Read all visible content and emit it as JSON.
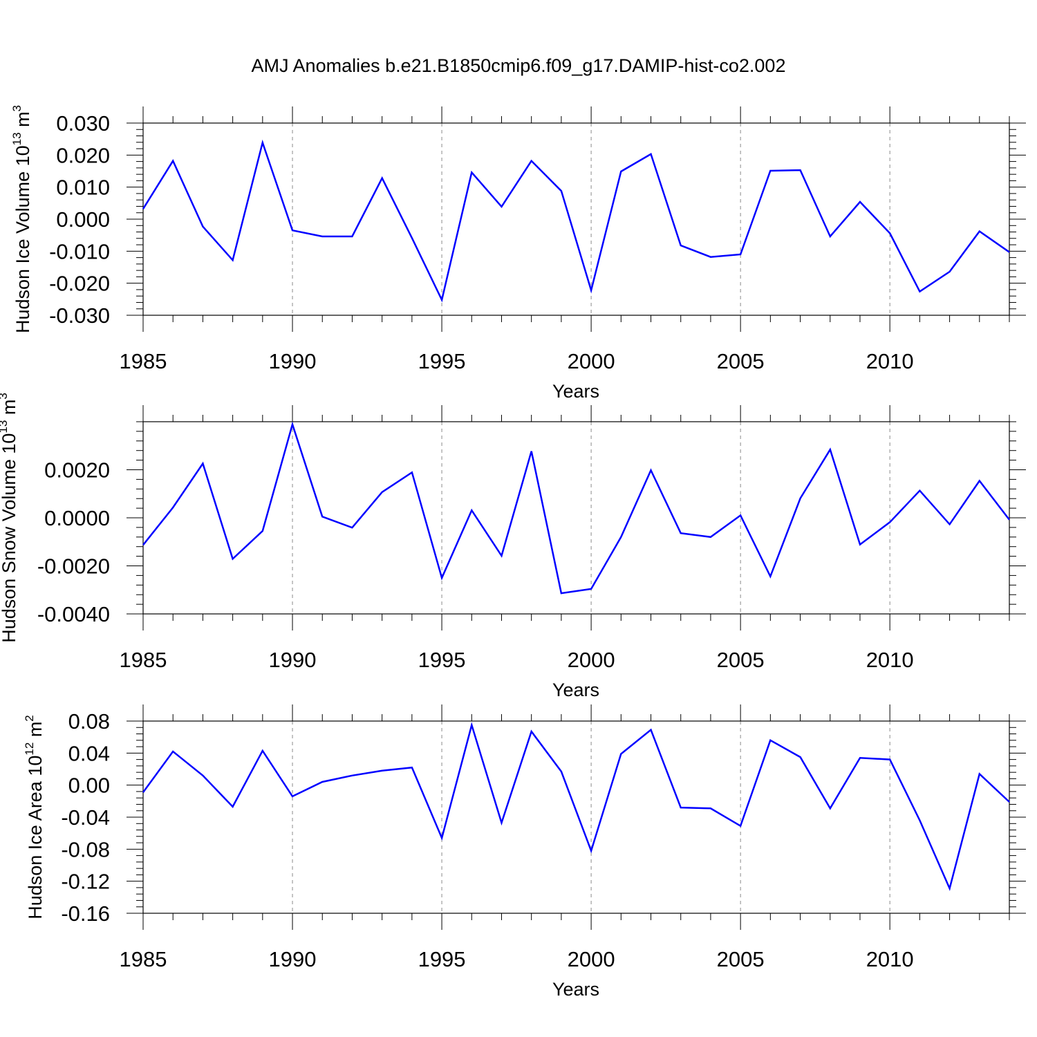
{
  "title": "AMJ Anomalies b.e21.B1850cmip6.f09_g17.DAMIP-hist-co2.002",
  "colors": {
    "series": "#0000ff",
    "grid": "#8a8a8a",
    "axis": "#000000"
  },
  "chart_data": [
    {
      "type": "line",
      "ylabel": "Hudson Ice Volume 10",
      "ylabel_exp": "13",
      "ylabel_unit": " m",
      "ylabel_unit_exp": "3",
      "xlabel": "Years",
      "xlim": [
        1985,
        2014
      ],
      "ylim": [
        -0.03,
        0.03
      ],
      "xticks": [
        1985,
        1990,
        1995,
        2000,
        2005,
        2010
      ],
      "yticks": [
        -0.03,
        -0.02,
        -0.01,
        0.0,
        0.01,
        0.02,
        0.03
      ],
      "ytick_labels": [
        "-0.030",
        "-0.020",
        "-0.010",
        "0.000",
        "0.010",
        "0.020",
        "0.030"
      ],
      "ytop_extra": 0,
      "y_minor_step": 0.002,
      "grid": "vertical dashed at labeled years",
      "x": [
        1985,
        1986,
        1987,
        1988,
        1989,
        1990,
        1991,
        1992,
        1993,
        1994,
        1995,
        1996,
        1997,
        1998,
        1999,
        2000,
        2001,
        2002,
        2003,
        2004,
        2005,
        2006,
        2007,
        2008,
        2009,
        2010,
        2011,
        2012,
        2013,
        2014
      ],
      "values": [
        0.0032,
        0.0182,
        -0.0023,
        -0.0128,
        0.0239,
        -0.0035,
        -0.0054,
        -0.0054,
        0.0128,
        -0.0059,
        -0.0252,
        0.0146,
        0.0039,
        0.0182,
        0.0088,
        -0.0222,
        0.0149,
        0.0203,
        -0.0082,
        -0.0118,
        -0.011,
        0.0151,
        0.0153,
        -0.0054,
        0.0054,
        -0.0044,
        -0.0226,
        -0.0164,
        -0.0038,
        -0.0103
      ]
    },
    {
      "type": "line",
      "ylabel": "Hudson Snow Volume 10",
      "ylabel_exp": "13",
      "ylabel_unit": " m",
      "ylabel_unit_exp": "3",
      "xlabel": "Years",
      "xlim": [
        1985,
        2014
      ],
      "ylim": [
        -0.004,
        0.004
      ],
      "xticks": [
        1985,
        1990,
        1995,
        2000,
        2005,
        2010
      ],
      "yticks": [
        -0.004,
        -0.002,
        0.0,
        0.002
      ],
      "ytick_labels": [
        "-0.0040",
        "-0.0020",
        "0.0000",
        "0.0020"
      ],
      "y_minor_step": 0.0004,
      "grid": "vertical dashed at labeled years",
      "x": [
        1985,
        1986,
        1987,
        1988,
        1989,
        1990,
        1991,
        1992,
        1993,
        1994,
        1995,
        1996,
        1997,
        1998,
        1999,
        2000,
        2001,
        2002,
        2003,
        2004,
        2005,
        2006,
        2007,
        2008,
        2009,
        2010,
        2011,
        2012,
        2013,
        2014
      ],
      "values": [
        -0.00113,
        0.00043,
        0.00226,
        -0.00171,
        -0.00055,
        0.00389,
        5e-05,
        -0.00041,
        0.00107,
        0.00189,
        -0.0025,
        0.00031,
        -0.00158,
        0.00277,
        -0.00314,
        -0.00296,
        -0.0008,
        0.00198,
        -0.00064,
        -0.0008,
        0.0001,
        -0.00244,
        0.00081,
        0.00284,
        -0.00111,
        -0.00018,
        0.00113,
        -0.00027,
        0.00154,
        -8e-05
      ]
    },
    {
      "type": "line",
      "ylabel": "Hudson Ice Area 10",
      "ylabel_exp": "12",
      "ylabel_unit": " m",
      "ylabel_unit_exp": "2",
      "xlabel": "Years",
      "xlim": [
        1985,
        2014
      ],
      "ylim": [
        -0.16,
        0.08
      ],
      "xticks": [
        1985,
        1990,
        1995,
        2000,
        2005,
        2010
      ],
      "yticks": [
        -0.16,
        -0.12,
        -0.08,
        -0.04,
        0.0,
        0.04,
        0.08
      ],
      "ytick_labels": [
        "-0.16",
        "-0.12",
        "-0.08",
        "-0.04",
        "0.00",
        "0.04",
        "0.08"
      ],
      "y_minor_step": 0.008,
      "grid": "vertical dashed at labeled years",
      "x": [
        1985,
        1986,
        1987,
        1988,
        1989,
        1990,
        1991,
        1992,
        1993,
        1994,
        1995,
        1996,
        1997,
        1998,
        1999,
        2000,
        2001,
        2002,
        2003,
        2004,
        2005,
        2006,
        2007,
        2008,
        2009,
        2010,
        2011,
        2012,
        2013,
        2014
      ],
      "values": [
        -0.009,
        0.042,
        0.012,
        -0.027,
        0.043,
        -0.014,
        0.004,
        0.012,
        0.018,
        0.022,
        -0.066,
        0.075,
        -0.047,
        0.067,
        0.017,
        -0.082,
        0.039,
        0.069,
        -0.028,
        -0.029,
        -0.051,
        0.056,
        0.035,
        -0.029,
        0.034,
        0.032,
        -0.044,
        -0.129,
        0.014,
        -0.021
      ]
    }
  ]
}
